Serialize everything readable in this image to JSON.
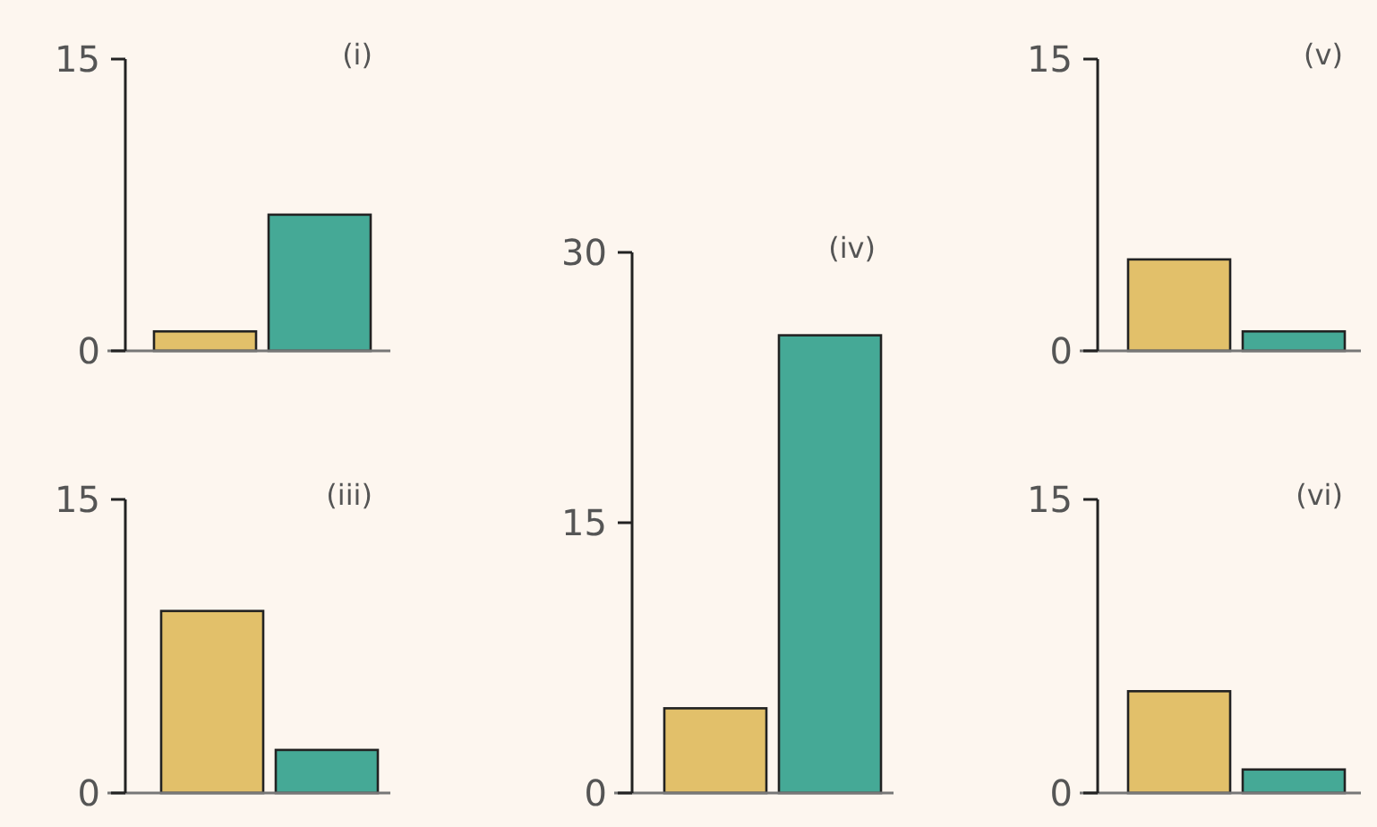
{
  "chart_data": [
    {
      "type": "bar",
      "title": "(i)",
      "categories": [
        null,
        null
      ],
      "values": [
        1,
        7
      ],
      "colors": [
        "#e2c06a",
        "#45a996"
      ],
      "ylim": [
        0,
        15
      ],
      "yticks": [
        0,
        15
      ]
    },
    {
      "type": "bar",
      "title": "(iii)",
      "categories": [
        null,
        null
      ],
      "values": [
        9.3,
        2.2
      ],
      "colors": [
        "#e2c06a",
        "#45a996"
      ],
      "ylim": [
        0,
        15
      ],
      "yticks": [
        0,
        15
      ]
    },
    {
      "type": "bar",
      "title": "(iv)",
      "categories": [
        null,
        null
      ],
      "values": [
        4.7,
        25.4
      ],
      "colors": [
        "#e2c06a",
        "#45a996"
      ],
      "ylim": [
        0,
        30
      ],
      "yticks": [
        0,
        15,
        30
      ]
    },
    {
      "type": "bar",
      "title": "(v)",
      "categories": [
        null,
        null
      ],
      "values": [
        4.7,
        1.0
      ],
      "colors": [
        "#e2c06a",
        "#45a996"
      ],
      "ylim": [
        0,
        15
      ],
      "yticks": [
        0,
        15
      ]
    },
    {
      "type": "bar",
      "title": "(vi)",
      "categories": [
        null,
        null
      ],
      "values": [
        5.2,
        1.2
      ],
      "colors": [
        "#e2c06a",
        "#45a996"
      ],
      "ylim": [
        0,
        15
      ],
      "yticks": [
        0,
        15
      ]
    }
  ]
}
